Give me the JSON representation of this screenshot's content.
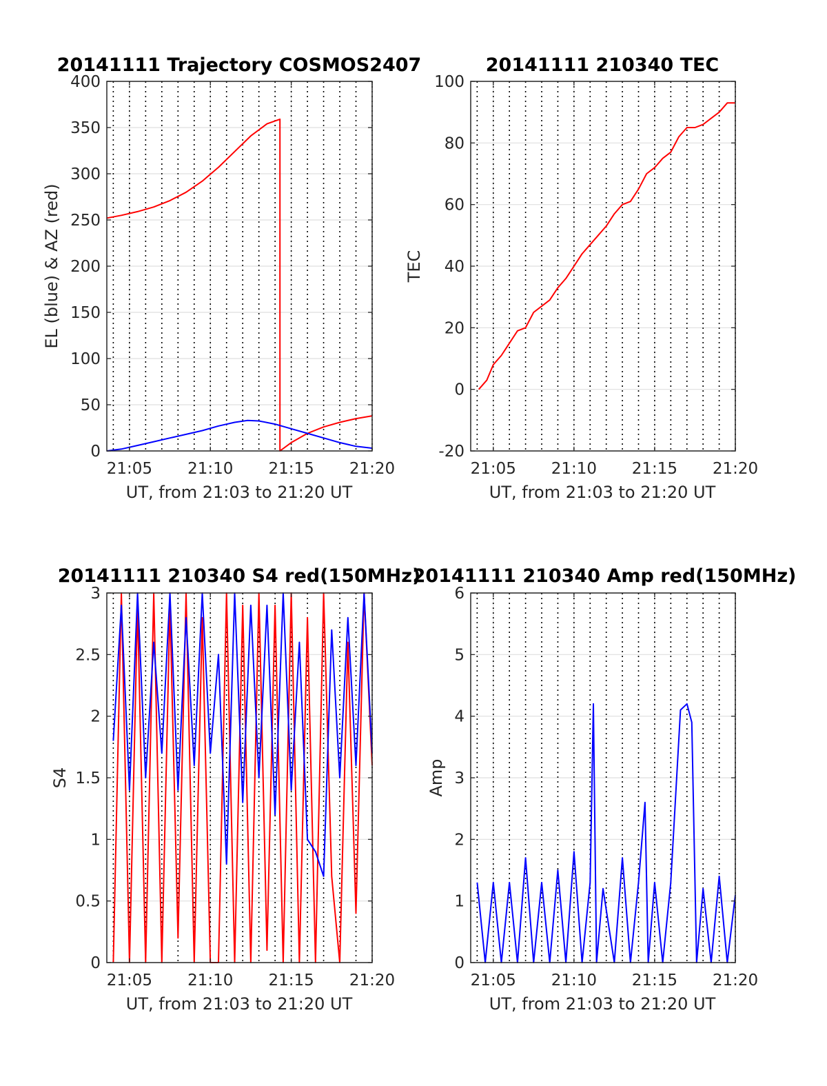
{
  "chart_data": [
    {
      "type": "line",
      "id": "trajectory",
      "title": "20141111 Trajectory COSMOS2407",
      "xlabel": "UT, from 21:03 to 21:20 UT",
      "ylabel": "EL (blue) & AZ (red)",
      "xlim": [
        3.6,
        20.0
      ],
      "ylim": [
        0,
        400
      ],
      "xticks": [
        5,
        10,
        15,
        20
      ],
      "xtick_labels": [
        "21:05",
        "21:10",
        "21:15",
        "21:20"
      ],
      "yticks": [
        0,
        50,
        100,
        150,
        200,
        250,
        300,
        350,
        400
      ],
      "ytick_labels": [
        "0",
        "50",
        "100",
        "150",
        "200",
        "250",
        "300",
        "350",
        "400"
      ],
      "grid": true,
      "series": [
        {
          "color": "#ff0000",
          "x": [
            3.6,
            4.5,
            5.5,
            6.5,
            7.5,
            8.5,
            9.5,
            10.5,
            11.5,
            12.5,
            13.5,
            14.3,
            14.3,
            15.0,
            16.0,
            17.0,
            18.0,
            19.0,
            20.0
          ],
          "y": [
            252,
            255,
            259,
            264,
            271,
            280,
            292,
            307,
            324,
            341,
            354,
            359,
            0,
            9,
            19,
            26,
            31,
            35,
            38
          ]
        },
        {
          "color": "#0000ff",
          "x": [
            3.6,
            4.5,
            5.5,
            6.5,
            7.5,
            8.5,
            9.5,
            10.5,
            11.5,
            12.3,
            13.0,
            14.0,
            15.0,
            16.0,
            17.0,
            18.0,
            19.0,
            20.0
          ],
          "y": [
            0,
            2,
            6,
            10,
            14,
            18,
            22,
            27,
            31,
            33,
            32.5,
            29,
            24,
            19,
            14,
            9,
            5,
            3
          ]
        }
      ]
    },
    {
      "type": "line",
      "id": "tec",
      "title": "20141111 210340 TEC",
      "xlabel": "UT, from 21:03 to 21:20 UT",
      "ylabel": "TEC",
      "xlim": [
        3.6,
        20.0
      ],
      "ylim": [
        -20,
        100
      ],
      "xticks": [
        5,
        10,
        15,
        20
      ],
      "xtick_labels": [
        "21:05",
        "21:10",
        "21:15",
        "21:20"
      ],
      "yticks": [
        -20,
        0,
        20,
        40,
        60,
        80,
        100
      ],
      "ytick_labels": [
        "-20",
        "0",
        "20",
        "40",
        "60",
        "80",
        "100"
      ],
      "grid": true,
      "series": [
        {
          "color": "#ff0000",
          "x": [
            4.1,
            4.6,
            5.0,
            5.5,
            6.0,
            6.5,
            7.0,
            7.5,
            8.0,
            8.5,
            9.0,
            9.5,
            10.0,
            10.5,
            11.0,
            11.5,
            12.0,
            12.5,
            13.0,
            13.5,
            14.0,
            14.5,
            15.0,
            15.5,
            16.0,
            16.5,
            17.0,
            17.5,
            18.0,
            18.5,
            19.0,
            19.5,
            20.0
          ],
          "y": [
            0,
            3,
            8,
            11,
            15,
            19,
            20,
            25,
            27,
            29,
            33,
            36,
            40,
            44,
            47,
            50,
            53,
            57,
            60,
            61,
            65,
            70,
            72,
            75,
            77,
            82,
            85,
            85,
            86,
            88,
            90,
            93,
            93
          ]
        }
      ]
    },
    {
      "type": "line",
      "id": "s4",
      "title": "20141111 210340 S4 red(150MHz)",
      "xlabel": "UT, from 21:03 to 21:20 UT",
      "ylabel": "S4",
      "xlim": [
        3.6,
        20.0
      ],
      "ylim": [
        0,
        3
      ],
      "xticks": [
        5,
        10,
        15,
        20
      ],
      "xtick_labels": [
        "21:05",
        "21:10",
        "21:15",
        "21:20"
      ],
      "yticks": [
        0,
        0.5,
        1,
        1.5,
        2,
        2.5,
        3
      ],
      "ytick_labels": [
        "0",
        "0.5",
        "1",
        "1.5",
        "2",
        "2.5",
        "3"
      ],
      "grid": true,
      "series": [
        {
          "color": "#ff0000",
          "x": [
            4.0,
            4.5,
            5.0,
            5.5,
            6.0,
            6.5,
            7.0,
            7.5,
            8.0,
            8.5,
            9.0,
            9.5,
            10.0,
            10.5,
            11.0,
            11.5,
            12.0,
            12.5,
            13.0,
            13.5,
            14.0,
            14.5,
            15.0,
            15.5,
            16.0,
            16.5,
            17.0,
            17.5,
            18.0,
            18.5,
            19.0,
            19.5,
            20.0
          ],
          "y": [
            0,
            3,
            0,
            2.9,
            0,
            3,
            0,
            2.9,
            0.2,
            3,
            0,
            2.8,
            0,
            0,
            3,
            0,
            2.9,
            0,
            3,
            0.1,
            2.9,
            0,
            3,
            0,
            2.8,
            0,
            3,
            0.7,
            0,
            2.6,
            0.4,
            3,
            1.6
          ]
        },
        {
          "color": "#0000ff",
          "x": [
            4.0,
            4.5,
            5.0,
            5.5,
            6.0,
            6.5,
            7.0,
            7.5,
            8.0,
            8.5,
            9.0,
            9.5,
            10.0,
            10.5,
            11.0,
            11.5,
            12.0,
            12.5,
            13.0,
            13.5,
            14.0,
            14.5,
            15.0,
            15.5,
            16.0,
            16.5,
            17.0,
            17.5,
            18.0,
            18.5,
            19.0,
            19.5,
            20.0
          ],
          "y": [
            1.8,
            2.9,
            1.4,
            3,
            1.5,
            2.6,
            1.7,
            3,
            1.4,
            2.8,
            1.6,
            3,
            1.7,
            2.5,
            0.8,
            3,
            1.3,
            2.9,
            1.5,
            2.9,
            1.2,
            3,
            1.4,
            2.6,
            1.0,
            0.9,
            0.7,
            2.7,
            1.5,
            2.8,
            1.6,
            3,
            1.7
          ]
        }
      ]
    },
    {
      "type": "line",
      "id": "amp",
      "title": "20141111 210340 Amp red(150MHz)",
      "xlabel": "UT, from 21:03 to 21:20 UT",
      "ylabel": "Amp",
      "xlim": [
        3.6,
        20.0
      ],
      "ylim": [
        0,
        6
      ],
      "xticks": [
        5,
        10,
        15,
        20
      ],
      "xtick_labels": [
        "21:05",
        "21:10",
        "21:15",
        "21:20"
      ],
      "yticks": [
        0,
        1,
        2,
        3,
        4,
        5,
        6
      ],
      "ytick_labels": [
        "0",
        "1",
        "2",
        "3",
        "4",
        "5",
        "6"
      ],
      "grid": true,
      "series": [
        {
          "color": "#0000ff",
          "x": [
            4.0,
            4.5,
            5.0,
            5.5,
            6.0,
            6.5,
            7.0,
            7.5,
            8.0,
            8.5,
            9.0,
            9.5,
            10.0,
            10.5,
            11.0,
            11.2,
            11.4,
            11.8,
            12.5,
            13.0,
            13.5,
            14.0,
            14.4,
            14.6,
            15.0,
            15.5,
            16.0,
            16.6,
            17.0,
            17.3,
            17.6,
            18.0,
            18.5,
            19.0,
            19.5,
            20.0
          ],
          "y": [
            1.3,
            0,
            1.3,
            0,
            1.3,
            0,
            1.7,
            0,
            1.3,
            0,
            1.5,
            0,
            1.8,
            0,
            1.3,
            4.2,
            0,
            1.2,
            0,
            1.7,
            0,
            1.3,
            2.6,
            0,
            1.3,
            0,
            1.3,
            4.1,
            4.2,
            3.9,
            0,
            1.2,
            0,
            1.4,
            0,
            1.1
          ]
        }
      ]
    }
  ]
}
